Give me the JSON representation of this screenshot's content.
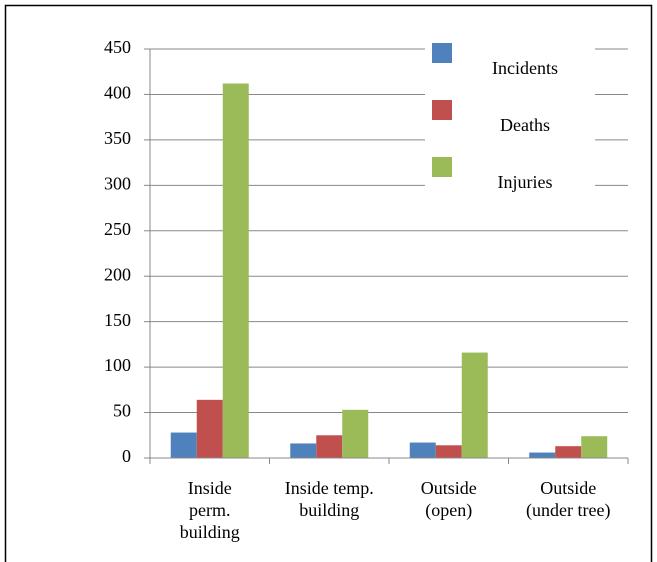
{
  "chart_data": {
    "type": "bar",
    "categories": [
      "Inside\nperm.\nbuilding",
      "Inside temp.\nbuilding",
      "Outside\n(open)",
      "Outside\n(under tree)"
    ],
    "series": [
      {
        "name": "Incidents",
        "color": "#4f81bd",
        "values": [
          28,
          16,
          17,
          6
        ]
      },
      {
        "name": "Deaths",
        "color": "#c0504d",
        "values": [
          64,
          25,
          14,
          13
        ]
      },
      {
        "name": "Injuries",
        "color": "#9bbb59",
        "values": [
          412,
          53,
          116,
          24
        ]
      }
    ],
    "ylim": [
      0,
      450
    ],
    "yticks": [
      0,
      50,
      100,
      150,
      200,
      250,
      300,
      350,
      400,
      450
    ],
    "grid": true,
    "legend": "top-right"
  }
}
